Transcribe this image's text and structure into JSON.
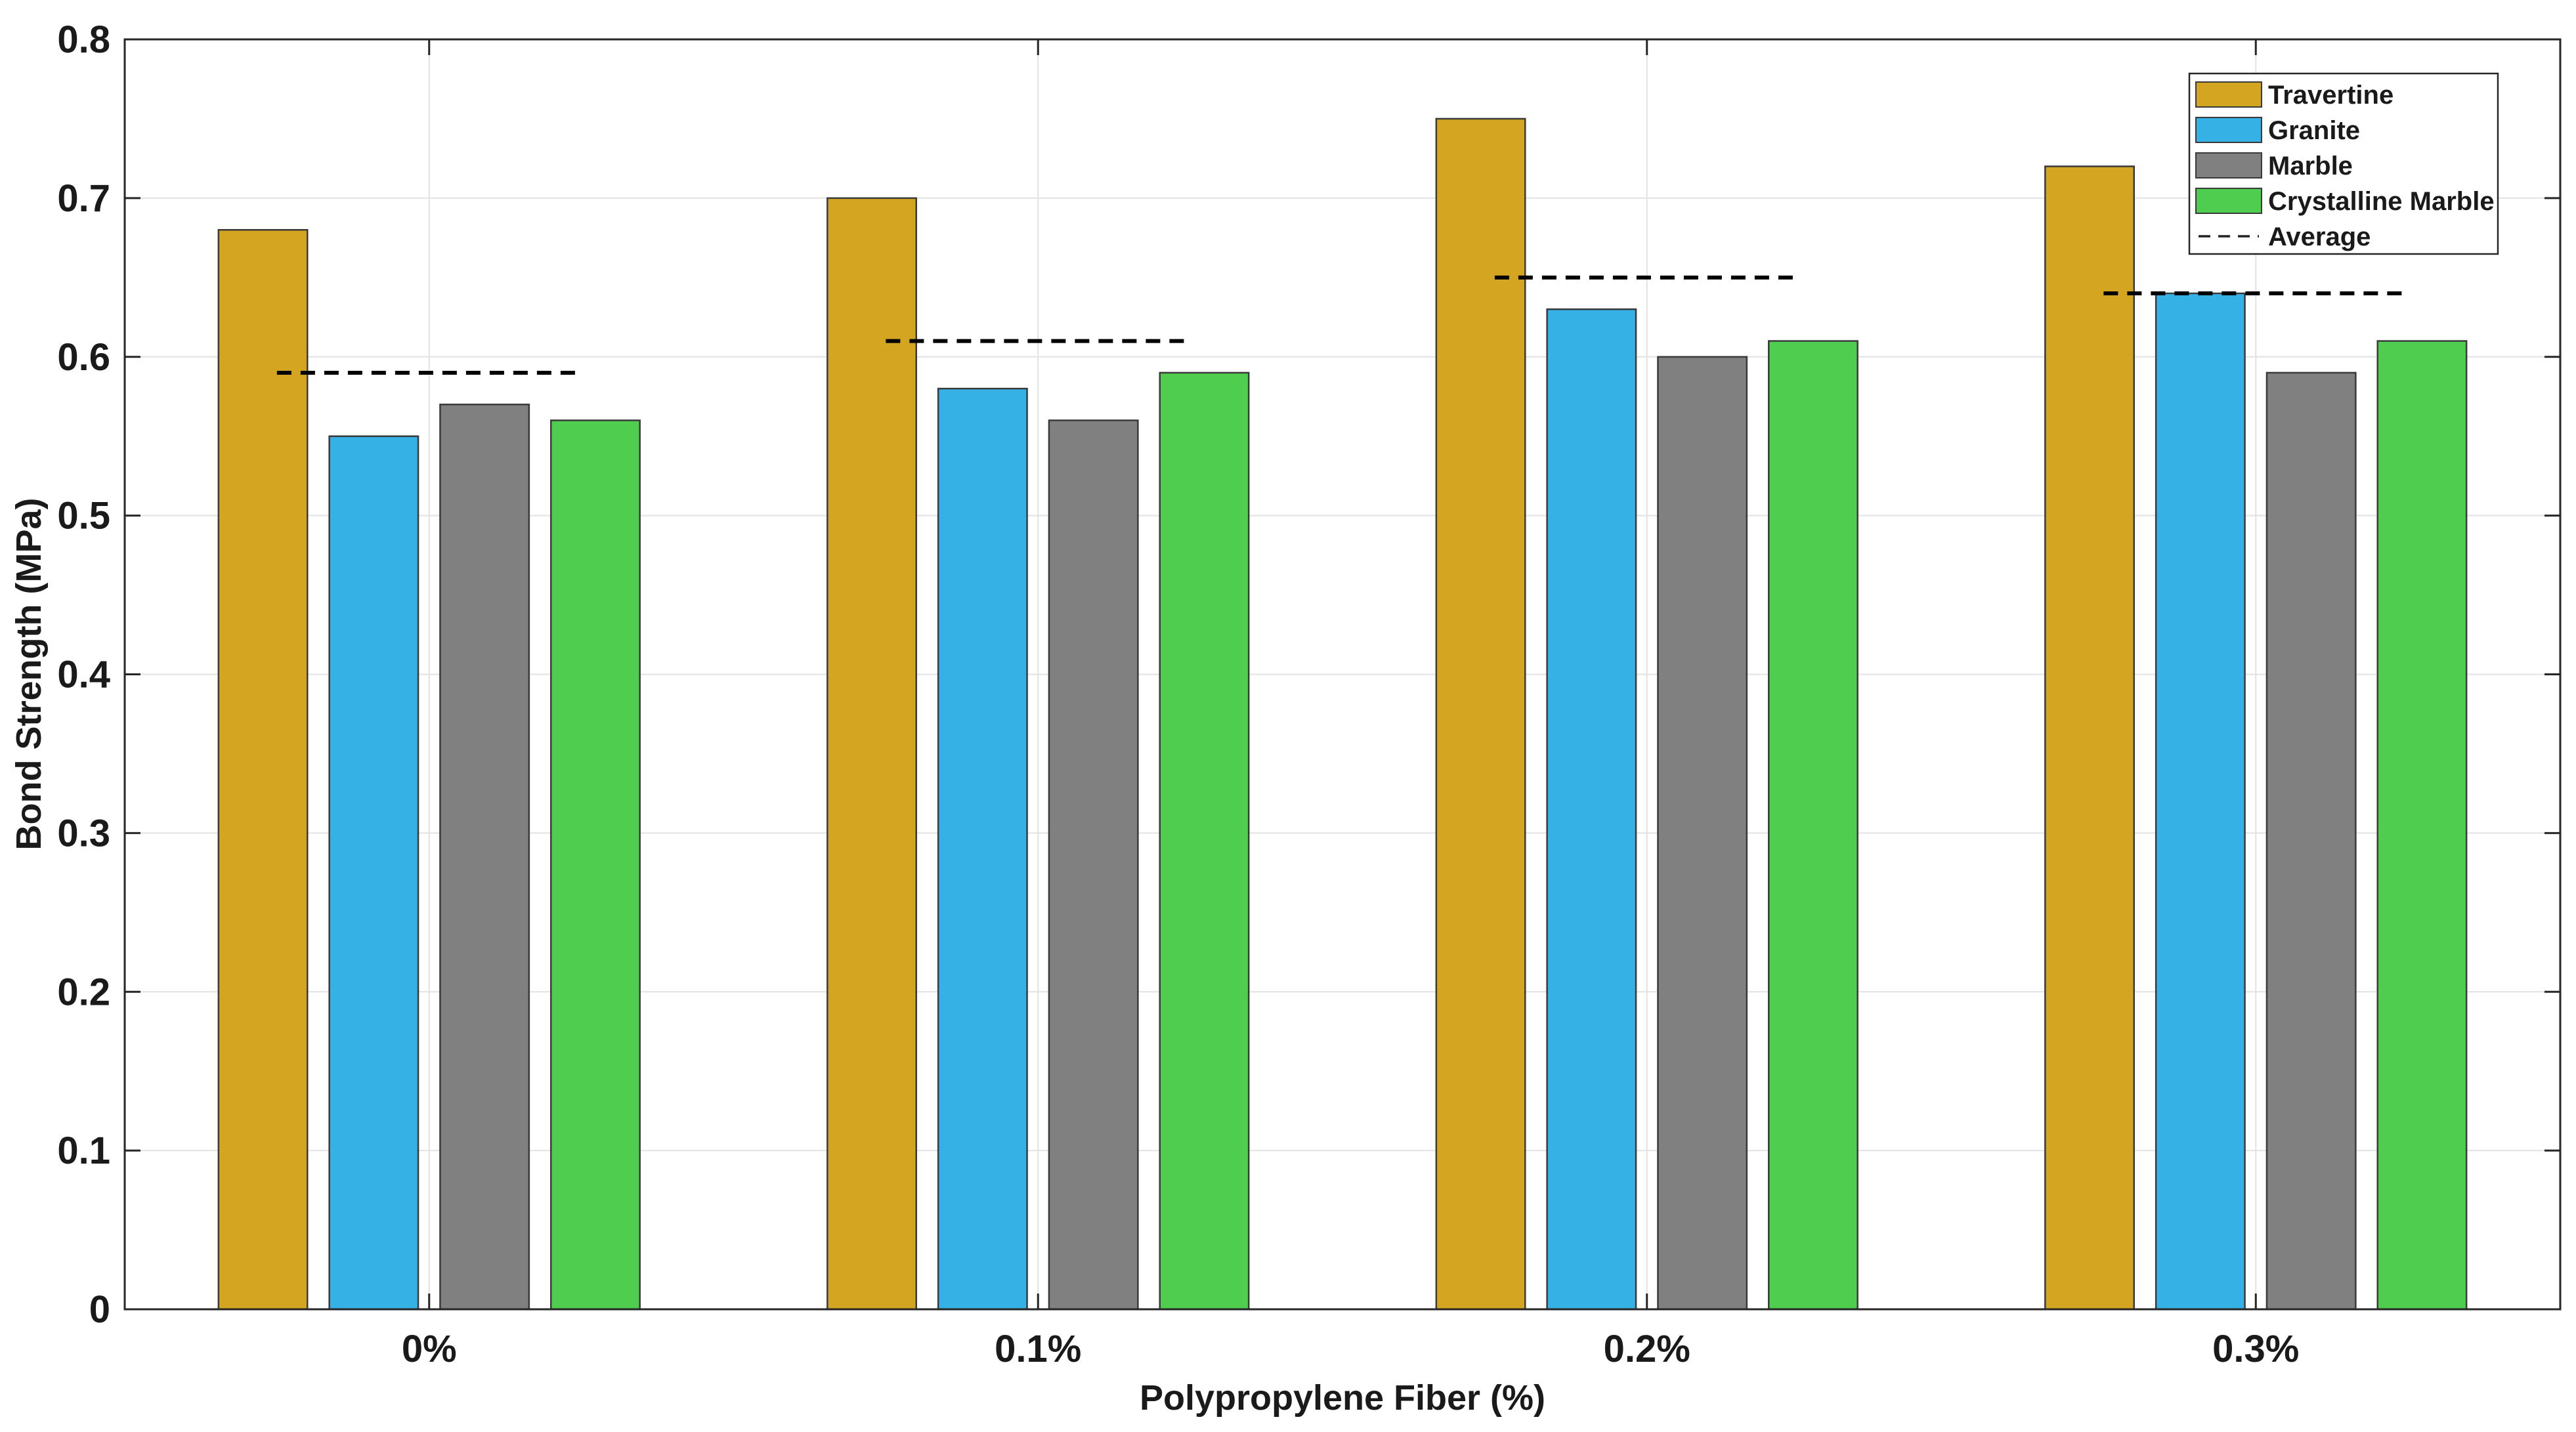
{
  "chart_data": {
    "type": "bar",
    "xlabel": "Polypropylene Fiber (%)",
    "ylabel": "Bond Strength (MPa)",
    "ylim": [
      0,
      0.8
    ],
    "yticks": [
      "0",
      "0.1",
      "0.2",
      "0.3",
      "0.4",
      "0.5",
      "0.6",
      "0.7",
      "0.8"
    ],
    "categories": [
      "0%",
      "0.1%",
      "0.2%",
      "0.3%"
    ],
    "series": [
      {
        "name": "Travertine",
        "color": "#D4A520",
        "values": [
          0.68,
          0.7,
          0.75,
          0.72
        ]
      },
      {
        "name": "Granite",
        "color": "#36B1E6",
        "values": [
          0.55,
          0.58,
          0.63,
          0.64
        ]
      },
      {
        "name": "Marble",
        "color": "#808080",
        "values": [
          0.57,
          0.56,
          0.6,
          0.59
        ]
      },
      {
        "name": "Crystalline Marble",
        "color": "#4ECD4E",
        "values": [
          0.56,
          0.59,
          0.61,
          0.61
        ]
      }
    ],
    "average": {
      "name": "Average",
      "values": [
        0.59,
        0.61,
        0.65,
        0.64
      ]
    },
    "grid": true,
    "legend_position": "top-right"
  }
}
